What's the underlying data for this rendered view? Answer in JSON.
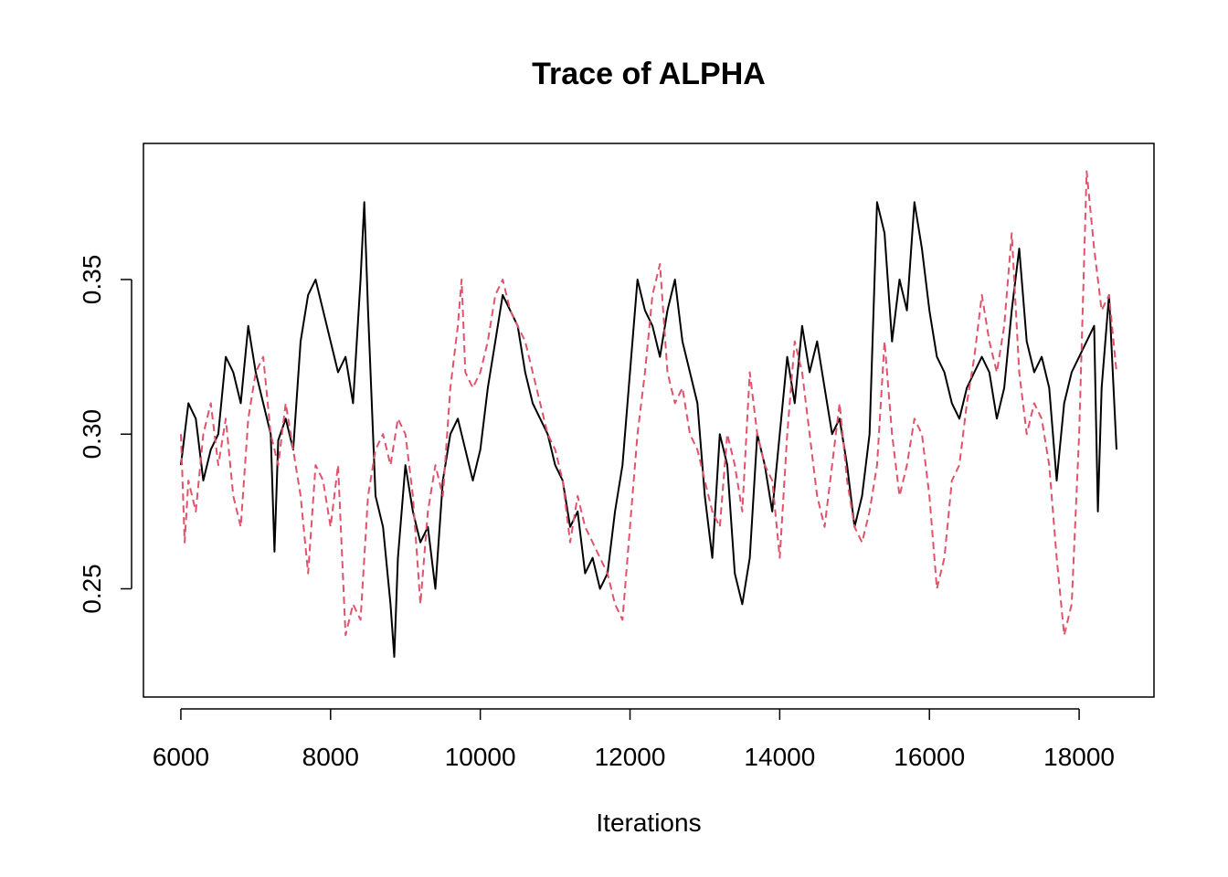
{
  "chart_data": {
    "type": "line",
    "title": "Trace of ALPHA",
    "xlabel": "Iterations",
    "ylabel": "",
    "xlim": [
      5500,
      19000
    ],
    "ylim": [
      0.215,
      0.394
    ],
    "xticks": [
      6000,
      8000,
      10000,
      12000,
      14000,
      16000,
      18000
    ],
    "xtick_labels": [
      "6000",
      "8000",
      "10000",
      "12000",
      "14000",
      "16000",
      "18000"
    ],
    "yticks": [
      0.25,
      0.3,
      0.35
    ],
    "ytick_labels": [
      "0.25",
      "0.30",
      "0.35"
    ],
    "grid": false,
    "legend": "none",
    "series": [
      {
        "color": "#000000",
        "dash": "solid",
        "x": [
          6000,
          6100,
          6200,
          6300,
          6400,
          6500,
          6600,
          6700,
          6800,
          6900,
          7000,
          7100,
          7200,
          7250,
          7300,
          7400,
          7500,
          7600,
          7700,
          7800,
          7900,
          8000,
          8100,
          8200,
          8300,
          8400,
          8450,
          8500,
          8600,
          8700,
          8800,
          8850,
          8900,
          9000,
          9100,
          9200,
          9300,
          9400,
          9500,
          9600,
          9700,
          9800,
          9900,
          10000,
          10100,
          10200,
          10300,
          10400,
          10500,
          10600,
          10700,
          10800,
          10900,
          11000,
          11100,
          11200,
          11300,
          11400,
          11500,
          11600,
          11700,
          11800,
          11900,
          12000,
          12100,
          12200,
          12300,
          12400,
          12500,
          12600,
          12700,
          12800,
          12900,
          13000,
          13100,
          13200,
          13300,
          13400,
          13500,
          13600,
          13700,
          13800,
          13900,
          14000,
          14100,
          14200,
          14300,
          14400,
          14500,
          14600,
          14700,
          14800,
          14900,
          15000,
          15100,
          15200,
          15300,
          15400,
          15500,
          15600,
          15700,
          15800,
          15900,
          16000,
          16100,
          16200,
          16300,
          16400,
          16500,
          16600,
          16700,
          16800,
          16900,
          17000,
          17100,
          17200,
          17300,
          17400,
          17500,
          17600,
          17700,
          17800,
          17900,
          18000,
          18100,
          18200,
          18250,
          18300,
          18400,
          18500
        ],
        "y": [
          0.29,
          0.31,
          0.305,
          0.285,
          0.295,
          0.3,
          0.325,
          0.32,
          0.31,
          0.335,
          0.32,
          0.31,
          0.3,
          0.262,
          0.298,
          0.305,
          0.295,
          0.33,
          0.345,
          0.35,
          0.34,
          0.33,
          0.32,
          0.325,
          0.31,
          0.35,
          0.375,
          0.34,
          0.28,
          0.27,
          0.245,
          0.228,
          0.26,
          0.29,
          0.275,
          0.265,
          0.27,
          0.25,
          0.285,
          0.3,
          0.305,
          0.295,
          0.285,
          0.295,
          0.315,
          0.33,
          0.345,
          0.34,
          0.335,
          0.32,
          0.31,
          0.305,
          0.3,
          0.29,
          0.285,
          0.27,
          0.275,
          0.255,
          0.26,
          0.25,
          0.255,
          0.275,
          0.29,
          0.32,
          0.35,
          0.34,
          0.335,
          0.325,
          0.34,
          0.35,
          0.33,
          0.32,
          0.31,
          0.28,
          0.26,
          0.3,
          0.29,
          0.255,
          0.245,
          0.26,
          0.3,
          0.29,
          0.275,
          0.3,
          0.325,
          0.31,
          0.335,
          0.32,
          0.33,
          0.315,
          0.3,
          0.305,
          0.29,
          0.27,
          0.28,
          0.3,
          0.375,
          0.365,
          0.33,
          0.35,
          0.34,
          0.375,
          0.36,
          0.34,
          0.325,
          0.32,
          0.31,
          0.305,
          0.315,
          0.32,
          0.325,
          0.32,
          0.305,
          0.315,
          0.34,
          0.36,
          0.33,
          0.32,
          0.325,
          0.315,
          0.285,
          0.31,
          0.32,
          0.325,
          0.33,
          0.335,
          0.275,
          0.315,
          0.345,
          0.295
        ]
      },
      {
        "color": "#DF536B",
        "dash": "dashed",
        "x": [
          6000,
          6050,
          6100,
          6200,
          6300,
          6400,
          6500,
          6600,
          6700,
          6800,
          6900,
          7000,
          7100,
          7200,
          7300,
          7400,
          7500,
          7600,
          7700,
          7800,
          7900,
          8000,
          8100,
          8200,
          8300,
          8400,
          8500,
          8600,
          8700,
          8800,
          8900,
          9000,
          9100,
          9200,
          9300,
          9400,
          9500,
          9600,
          9700,
          9750,
          9800,
          9900,
          10000,
          10100,
          10200,
          10300,
          10400,
          10500,
          10600,
          10700,
          10800,
          10900,
          11000,
          11100,
          11200,
          11300,
          11400,
          11500,
          11600,
          11700,
          11800,
          11900,
          12000,
          12100,
          12200,
          12300,
          12400,
          12500,
          12600,
          12700,
          12800,
          12900,
          13000,
          13100,
          13200,
          13300,
          13400,
          13500,
          13600,
          13700,
          13800,
          13900,
          14000,
          14100,
          14200,
          14300,
          14400,
          14500,
          14600,
          14700,
          14800,
          14900,
          15000,
          15100,
          15200,
          15300,
          15400,
          15500,
          15600,
          15700,
          15800,
          15900,
          16000,
          16100,
          16200,
          16300,
          16400,
          16500,
          16600,
          16700,
          16800,
          16900,
          17000,
          17100,
          17200,
          17300,
          17400,
          17500,
          17600,
          17700,
          17800,
          17900,
          18000,
          18100,
          18200,
          18300,
          18400,
          18500
        ],
        "y": [
          0.3,
          0.265,
          0.285,
          0.275,
          0.3,
          0.31,
          0.29,
          0.305,
          0.28,
          0.27,
          0.305,
          0.32,
          0.325,
          0.3,
          0.29,
          0.31,
          0.295,
          0.28,
          0.255,
          0.29,
          0.285,
          0.27,
          0.29,
          0.235,
          0.245,
          0.24,
          0.28,
          0.295,
          0.3,
          0.29,
          0.305,
          0.3,
          0.28,
          0.245,
          0.275,
          0.29,
          0.28,
          0.315,
          0.335,
          0.35,
          0.32,
          0.315,
          0.32,
          0.33,
          0.345,
          0.35,
          0.34,
          0.335,
          0.33,
          0.32,
          0.31,
          0.3,
          0.295,
          0.285,
          0.265,
          0.28,
          0.27,
          0.265,
          0.26,
          0.255,
          0.245,
          0.24,
          0.27,
          0.3,
          0.32,
          0.345,
          0.355,
          0.32,
          0.31,
          0.315,
          0.3,
          0.295,
          0.285,
          0.275,
          0.27,
          0.3,
          0.29,
          0.275,
          0.32,
          0.3,
          0.29,
          0.285,
          0.26,
          0.3,
          0.33,
          0.32,
          0.3,
          0.28,
          0.27,
          0.29,
          0.31,
          0.285,
          0.27,
          0.265,
          0.275,
          0.29,
          0.33,
          0.3,
          0.28,
          0.29,
          0.305,
          0.3,
          0.28,
          0.25,
          0.26,
          0.285,
          0.29,
          0.31,
          0.325,
          0.345,
          0.33,
          0.32,
          0.335,
          0.365,
          0.32,
          0.3,
          0.31,
          0.305,
          0.29,
          0.26,
          0.235,
          0.245,
          0.3,
          0.385,
          0.36,
          0.34,
          0.345,
          0.32
        ]
      }
    ]
  }
}
